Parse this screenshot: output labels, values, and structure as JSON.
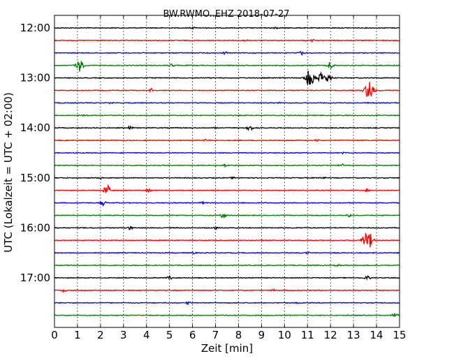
{
  "chart_data": {
    "type": "line",
    "title": "BW.RWMO..EHZ 2018-07-27",
    "xlabel": "Zeit  [min]",
    "ylabel": "UTC (Lokalzeit = UTC + 02:00)",
    "xlim": [
      0,
      15
    ],
    "x_ticks": [
      0,
      1,
      2,
      3,
      4,
      5,
      6,
      7,
      8,
      9,
      10,
      11,
      12,
      13,
      14,
      15
    ],
    "y_tick_labels": [
      "12:00",
      "13:00",
      "14:00",
      "15:00",
      "16:00",
      "17:00"
    ],
    "grid": "vertical dotted",
    "trace_colors": [
      "#000000",
      "#ff0000",
      "#0000ff",
      "#008000"
    ],
    "series": [
      {
        "start": "12:00",
        "events": [
          {
            "x": 6.0,
            "amp": 0.12
          },
          {
            "x": 9.6,
            "amp": 0.12
          }
        ]
      },
      {
        "start": "12:15",
        "events": [
          {
            "x": 8.3,
            "amp": 0.12
          },
          {
            "x": 11.2,
            "amp": 0.1
          }
        ]
      },
      {
        "start": "12:30",
        "events": [
          {
            "x": 7.4,
            "amp": 0.15
          },
          {
            "x": 10.7,
            "amp": 0.25
          }
        ]
      },
      {
        "start": "12:45",
        "events": [
          {
            "x": 1.1,
            "amp": 0.7
          },
          {
            "x": 5.1,
            "amp": 0.25
          },
          {
            "x": 12.0,
            "amp": 0.45
          }
        ]
      },
      {
        "start": "13:00",
        "events": [
          {
            "x": 11.1,
            "amp": 1.0
          },
          {
            "x": 11.6,
            "amp": 0.6
          },
          {
            "x": 11.9,
            "amp": 0.5
          }
        ]
      },
      {
        "start": "13:15",
        "events": [
          {
            "x": 4.2,
            "amp": 0.2
          },
          {
            "x": 13.7,
            "amp": 1.1
          }
        ]
      },
      {
        "start": "13:30",
        "events": [
          {
            "x": 2.5,
            "amp": 0.1
          },
          {
            "x": 9.8,
            "amp": 0.1
          }
        ]
      },
      {
        "start": "13:45",
        "events": [
          {
            "x": 1.3,
            "amp": 0.1
          }
        ]
      },
      {
        "start": "14:00",
        "events": [
          {
            "x": 3.3,
            "amp": 0.2
          },
          {
            "x": 8.5,
            "amp": 0.3
          },
          {
            "x": 7.0,
            "amp": 0.15
          }
        ]
      },
      {
        "start": "14:15",
        "events": [
          {
            "x": 6.6,
            "amp": 0.12
          },
          {
            "x": 11.4,
            "amp": 0.12
          }
        ]
      },
      {
        "start": "14:30",
        "events": [
          {
            "x": 12.6,
            "amp": 0.12
          }
        ]
      },
      {
        "start": "14:45",
        "events": [
          {
            "x": 7.4,
            "amp": 0.2
          },
          {
            "x": 12.5,
            "amp": 0.15
          }
        ]
      },
      {
        "start": "15:00",
        "events": [
          {
            "x": 2.0,
            "amp": 0.15
          },
          {
            "x": 7.8,
            "amp": 0.12
          },
          {
            "x": 11.7,
            "amp": 0.12
          }
        ]
      },
      {
        "start": "15:15",
        "events": [
          {
            "x": 2.3,
            "amp": 0.6
          },
          {
            "x": 4.1,
            "amp": 0.2
          },
          {
            "x": 13.6,
            "amp": 0.15
          }
        ]
      },
      {
        "start": "15:30",
        "events": [
          {
            "x": 2.1,
            "amp": 0.3
          },
          {
            "x": 6.4,
            "amp": 0.12
          }
        ]
      },
      {
        "start": "15:45",
        "events": [
          {
            "x": 7.3,
            "amp": 0.35
          },
          {
            "x": 12.8,
            "amp": 0.15
          }
        ]
      },
      {
        "start": "16:00",
        "events": [
          {
            "x": 3.3,
            "amp": 0.2
          },
          {
            "x": 7.0,
            "amp": 0.15
          }
        ]
      },
      {
        "start": "16:15",
        "events": [
          {
            "x": 13.6,
            "amp": 1.2
          },
          {
            "x": 9.0,
            "amp": 0.1
          }
        ]
      },
      {
        "start": "16:30",
        "events": [
          {
            "x": 6.0,
            "amp": 0.15
          },
          {
            "x": 11.0,
            "amp": 0.12
          }
        ]
      },
      {
        "start": "16:45",
        "events": [
          {
            "x": 12.3,
            "amp": 0.12
          }
        ]
      },
      {
        "start": "17:00",
        "events": [
          {
            "x": 5.0,
            "amp": 0.2
          },
          {
            "x": 13.6,
            "amp": 0.25
          }
        ]
      },
      {
        "start": "17:15",
        "events": [
          {
            "x": 0.4,
            "amp": 0.15
          },
          {
            "x": 9.5,
            "amp": 0.1
          }
        ]
      },
      {
        "start": "17:30",
        "events": [
          {
            "x": 5.8,
            "amp": 0.15
          },
          {
            "x": 10.6,
            "amp": 0.1
          }
        ]
      },
      {
        "start": "17:45",
        "events": [
          {
            "x": 14.8,
            "amp": 0.3
          }
        ]
      }
    ]
  }
}
